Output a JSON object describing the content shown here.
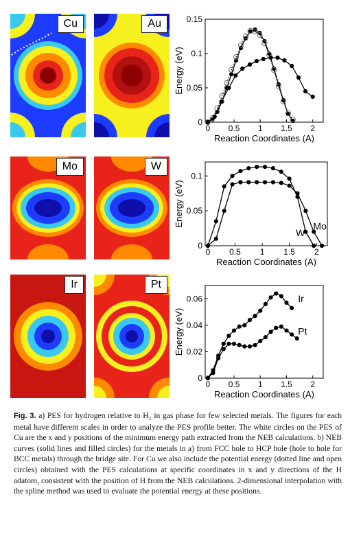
{
  "colors": {
    "dark_red": "#8b0000",
    "red": "#e8231a",
    "orange": "#ff8a00",
    "yellow": "#f5f01e",
    "cyan": "#38c8f0",
    "blue": "#1e3cff",
    "dark_blue": "#0e0ea8",
    "line": "#000000"
  },
  "panels": {
    "cu": {
      "label": "Cu",
      "style": "cu"
    },
    "au": {
      "label": "Au",
      "style": "au"
    },
    "mo": {
      "label": "Mo",
      "style": "mo"
    },
    "w": {
      "label": "W",
      "style": "w"
    },
    "ir": {
      "label": "Ir",
      "style": "ir"
    },
    "pt": {
      "label": "Pt",
      "style": "pt"
    }
  },
  "caption": {
    "fig": "Fig. 3.",
    "text": " a) PES for hydrogen relative to H₂ in gas phase for few selected metals. The figures for each metal have different scales in order to analyze the PES profile better. The white circles on the PES of Cu are the x and y positions of the minimum energy path extracted from the NEB calculations. b) NEB curves (solid lines and filled circles) for the metals in a) from FCC hole to HCP hole (hole to hole for BCC metals) through the bridge site. For Cu we also include the potential energy (dotted line and open circles) obtained with the PES calculations at specific coordinates in x and y directions of the H adatom, consistent with the position of H from the NEB calculations. 2-dimensional interpolation with the spline method was used to evaluate the potential energy at these positions."
  },
  "chart_data": [
    {
      "type": "line",
      "xlabel": "Reaction Coordinates (A)",
      "ylabel": "Energy (eV)",
      "xlim": [
        -0.05,
        2.2
      ],
      "ylim": [
        0,
        0.15
      ],
      "xticks": [
        0,
        0.5,
        1,
        1.5,
        2
      ],
      "yticks": [
        0,
        0.05,
        0.1,
        0.15
      ],
      "xtick_labels": [
        "0",
        "0.5",
        "1",
        "1.5",
        "2"
      ],
      "ytick_labels": [
        "0",
        "0.05",
        "0.1",
        "0.15"
      ],
      "series": [
        {
          "name": "",
          "style": "solid-filled",
          "x": [
            0,
            0.09,
            0.18,
            0.27,
            0.36,
            0.45,
            0.54,
            0.63,
            0.72,
            0.81,
            0.9,
            0.99,
            1.08,
            1.17,
            1.26,
            1.35,
            1.44,
            1.53,
            1.62
          ],
          "y": [
            0,
            0.004,
            0.015,
            0.03,
            0.05,
            0.07,
            0.09,
            0.108,
            0.122,
            0.132,
            0.135,
            0.13,
            0.118,
            0.1,
            0.078,
            0.055,
            0.032,
            0.012,
            0.002
          ]
        },
        {
          "name": "",
          "style": "dotted-open",
          "x": [
            0,
            0.09,
            0.18,
            0.27,
            0.36,
            0.45,
            0.54,
            0.63,
            0.72,
            0.81,
            0.9,
            0.99,
            1.08,
            1.17,
            1.26,
            1.35,
            1.44,
            1.53,
            1.62
          ],
          "y": [
            0,
            0.006,
            0.02,
            0.038,
            0.057,
            0.076,
            0.095,
            0.112,
            0.125,
            0.133,
            0.132,
            0.127,
            0.115,
            0.098,
            0.076,
            0.052,
            0.03,
            0.013,
            0.004
          ]
        },
        {
          "name": "",
          "style": "solid-filled",
          "x": [
            0,
            0.13,
            0.26,
            0.4,
            0.53,
            0.66,
            0.8,
            0.93,
            1.06,
            1.2,
            1.33,
            1.46,
            1.6,
            1.73,
            1.86,
            2.0
          ],
          "y": [
            0,
            0.008,
            0.03,
            0.05,
            0.068,
            0.078,
            0.084,
            0.089,
            0.092,
            0.094,
            0.094,
            0.09,
            0.082,
            0.065,
            0.045,
            0.037
          ]
        }
      ]
    },
    {
      "type": "line",
      "xlabel": "Reaction Coordinates (A)",
      "ylabel": "Energy (eV)",
      "xlim": [
        -0.05,
        2.2
      ],
      "ylim": [
        0,
        0.12
      ],
      "xticks": [
        0,
        0.5,
        1,
        1.5,
        2
      ],
      "yticks": [
        0,
        0.05,
        0.1
      ],
      "xtick_labels": [
        "0",
        "0.5",
        "1",
        "1.5",
        "2"
      ],
      "ytick_labels": [
        "0",
        "0.05",
        "0.1"
      ],
      "annotations": [
        {
          "text": "W",
          "x": 1.62,
          "y": 0.014
        },
        {
          "text": "Mo",
          "x": 1.94,
          "y": 0.023
        }
      ],
      "series": [
        {
          "name": "W",
          "style": "solid-filled",
          "x": [
            0,
            0.15,
            0.3,
            0.45,
            0.6,
            0.75,
            0.9,
            1.05,
            1.2,
            1.35,
            1.5,
            1.65,
            1.8,
            1.95
          ],
          "y": [
            0,
            0.035,
            0.085,
            0.1,
            0.107,
            0.111,
            0.113,
            0.113,
            0.111,
            0.106,
            0.096,
            0.07,
            0.02,
            0
          ]
        },
        {
          "name": "Mo",
          "style": "solid-filled",
          "x": [
            0,
            0.15,
            0.3,
            0.45,
            0.6,
            0.75,
            0.9,
            1.05,
            1.2,
            1.35,
            1.5,
            1.65,
            1.8,
            1.95,
            2.1
          ],
          "y": [
            0,
            0.01,
            0.05,
            0.088,
            0.091,
            0.091,
            0.091,
            0.091,
            0.091,
            0.09,
            0.086,
            0.075,
            0.05,
            0.02,
            0
          ]
        }
      ]
    },
    {
      "type": "line",
      "xlabel": "Reaction Coordinates (A)",
      "ylabel": "Energy (eV)",
      "xlim": [
        -0.05,
        2.2
      ],
      "ylim": [
        0,
        0.07
      ],
      "xticks": [
        0,
        0.5,
        1,
        1.5,
        2
      ],
      "yticks": [
        0,
        0.02,
        0.04,
        0.06
      ],
      "xtick_labels": [
        "0",
        "0.5",
        "1",
        "1.5",
        "2"
      ],
      "ytick_labels": [
        "0",
        "0.02",
        "0.04",
        "0.06"
      ],
      "annotations": [
        {
          "text": "Ir",
          "x": 1.72,
          "y": 0.0575
        },
        {
          "text": "Pt",
          "x": 1.72,
          "y": 0.033
        }
      ],
      "series": [
        {
          "name": "Ir",
          "style": "solid-filled",
          "x": [
            0,
            0.1,
            0.2,
            0.3,
            0.4,
            0.5,
            0.6,
            0.7,
            0.8,
            0.9,
            1.0,
            1.1,
            1.2,
            1.3,
            1.4,
            1.5,
            1.6
          ],
          "y": [
            0,
            0.006,
            0.017,
            0.026,
            0.032,
            0.036,
            0.039,
            0.04,
            0.044,
            0.047,
            0.051,
            0.056,
            0.061,
            0.064,
            0.062,
            0.057,
            0.053
          ]
        },
        {
          "name": "Pt",
          "style": "solid-filled",
          "x": [
            0,
            0.1,
            0.2,
            0.3,
            0.4,
            0.5,
            0.6,
            0.7,
            0.8,
            0.9,
            1.0,
            1.1,
            1.2,
            1.3,
            1.4,
            1.5,
            1.6,
            1.7
          ],
          "y": [
            0,
            0.004,
            0.015,
            0.022,
            0.026,
            0.026,
            0.025,
            0.024,
            0.024,
            0.025,
            0.028,
            0.031,
            0.035,
            0.038,
            0.039,
            0.036,
            0.033,
            0.03
          ]
        }
      ]
    }
  ]
}
